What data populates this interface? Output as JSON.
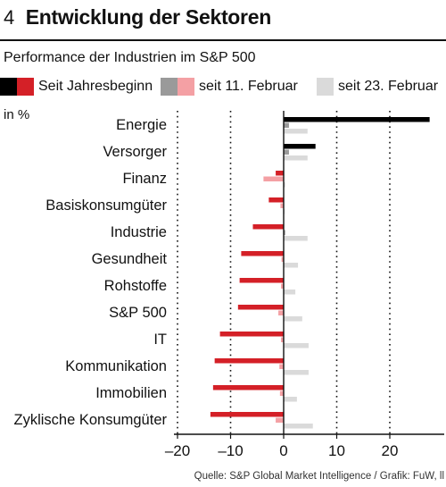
{
  "header": {
    "number": "4",
    "title": "Entwicklung der Sektoren"
  },
  "subtitle": "Performance der Industrien im S&P 500",
  "unit_label": "in %",
  "source": "Quelle: S&P Global Market Intelligence / Grafik: FuW, ll",
  "colors": {
    "ytd_dark": "#000000",
    "ytd_red": "#d42027",
    "feb11_dark": "#9a9a9a",
    "feb11_red": "#f4a0a4",
    "feb23": "#dadada",
    "axis": "#111111",
    "grid": "#111111"
  },
  "chart_data": {
    "type": "bar",
    "orientation": "horizontal",
    "categories": [
      "Energie",
      "Versorger",
      "Finanz",
      "Basiskonsumgüter",
      "Industrie",
      "Gesundheit",
      "Rohstoffe",
      "S&P 500",
      "IT",
      "Kommunikation",
      "Immobilien",
      "Zyklische Konsumgüter"
    ],
    "series": [
      {
        "name": "Seit Jahresbeginn",
        "values": [
          27.5,
          6.0,
          -1.5,
          -2.8,
          -5.8,
          -8.0,
          -8.3,
          -8.6,
          -12.0,
          -13.0,
          -13.3,
          -13.8
        ]
      },
      {
        "name": "seit 11. Februar",
        "values": [
          1.0,
          1.0,
          -3.8,
          -0.6,
          0.3,
          -0.4,
          -0.5,
          -1.0,
          -0.5,
          -0.8,
          -0.7,
          -1.5
        ]
      },
      {
        "name": "seit 23. Februar",
        "values": [
          4.5,
          4.5,
          0.3,
          0.2,
          4.5,
          2.7,
          2.2,
          3.5,
          4.7,
          4.7,
          2.5,
          5.5
        ]
      }
    ],
    "xlim": [
      -22,
      30
    ],
    "xticks": [
      -20,
      -10,
      0,
      10,
      20
    ],
    "xtick_labels": [
      "–20",
      "–10",
      "0",
      "10",
      "20"
    ],
    "gridlines": [
      -20,
      -10,
      10,
      20
    ],
    "legend": "top"
  }
}
